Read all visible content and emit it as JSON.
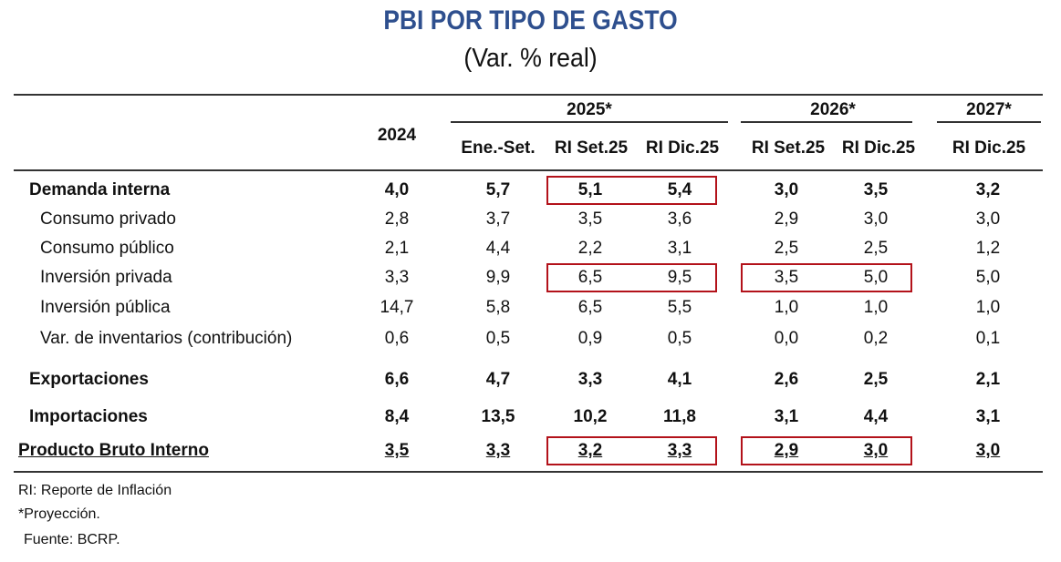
{
  "title": "PBI POR TIPO DE GASTO",
  "subtitle": "(Var. % real)",
  "colors": {
    "title": "#2e4f8e",
    "highlight_box": "#b3121a"
  },
  "header": {
    "year_2024": "2024",
    "groups": [
      {
        "label": "2025*",
        "columns": [
          "Ene.-Set.",
          "RI Set.25",
          "RI Dic.25"
        ]
      },
      {
        "label": "2026*",
        "columns": [
          "RI Set.25",
          "RI Dic.25"
        ]
      },
      {
        "label": "2027*",
        "columns": [
          "RI Dic.25"
        ]
      }
    ]
  },
  "rows": [
    {
      "label": "Demanda interna",
      "style": "bold",
      "values": [
        "4,0",
        "5,7",
        "5,1",
        "5,4",
        "3,0",
        "3,5",
        "3,2"
      ]
    },
    {
      "label": "Consumo privado",
      "style": "indent",
      "values": [
        "2,8",
        "3,7",
        "3,5",
        "3,6",
        "2,9",
        "3,0",
        "3,0"
      ]
    },
    {
      "label": "Consumo público",
      "style": "indent",
      "values": [
        "2,1",
        "4,4",
        "2,2",
        "3,1",
        "2,5",
        "2,5",
        "1,2"
      ]
    },
    {
      "label": "Inversión privada",
      "style": "indent",
      "values": [
        "3,3",
        "9,9",
        "6,5",
        "9,5",
        "3,5",
        "5,0",
        "5,0"
      ]
    },
    {
      "label": "Inversión pública",
      "style": "indent",
      "values": [
        "14,7",
        "5,8",
        "6,5",
        "5,5",
        "1,0",
        "1,0",
        "1,0"
      ]
    },
    {
      "label": "Var. de inventarios (contribución)",
      "style": "indent",
      "values": [
        "0,6",
        "0,5",
        "0,9",
        "0,5",
        "0,0",
        "0,2",
        "0,1"
      ]
    },
    {
      "label": "Exportaciones",
      "style": "bold",
      "values": [
        "6,6",
        "4,7",
        "3,3",
        "4,1",
        "2,6",
        "2,5",
        "2,1"
      ]
    },
    {
      "label": "Importaciones",
      "style": "bold",
      "values": [
        "8,4",
        "13,5",
        "10,2",
        "11,8",
        "3,1",
        "4,4",
        "3,1"
      ]
    },
    {
      "label": "Producto Bruto Interno",
      "style": "total",
      "values": [
        "3,5",
        "3,3",
        "3,2",
        "3,3",
        "2,9",
        "3,0",
        "3,0"
      ]
    }
  ],
  "highlights": [
    {
      "row": "Demanda interna",
      "columns": [
        "2025* RI Set.25",
        "2025* RI Dic.25"
      ]
    },
    {
      "row": "Inversión privada",
      "columns": [
        "2025* RI Set.25",
        "2025* RI Dic.25"
      ]
    },
    {
      "row": "Inversión privada",
      "columns": [
        "2026* RI Set.25",
        "2026* RI Dic.25"
      ]
    },
    {
      "row": "Producto Bruto Interno",
      "columns": [
        "2025* RI Set.25",
        "2025* RI Dic.25"
      ]
    },
    {
      "row": "Producto Bruto Interno",
      "columns": [
        "2026* RI Set.25",
        "2026* RI Dic.25"
      ]
    }
  ],
  "notes": [
    "RI: Reporte de Inflación",
    "*Proyección.",
    "Fuente: BCRP."
  ]
}
